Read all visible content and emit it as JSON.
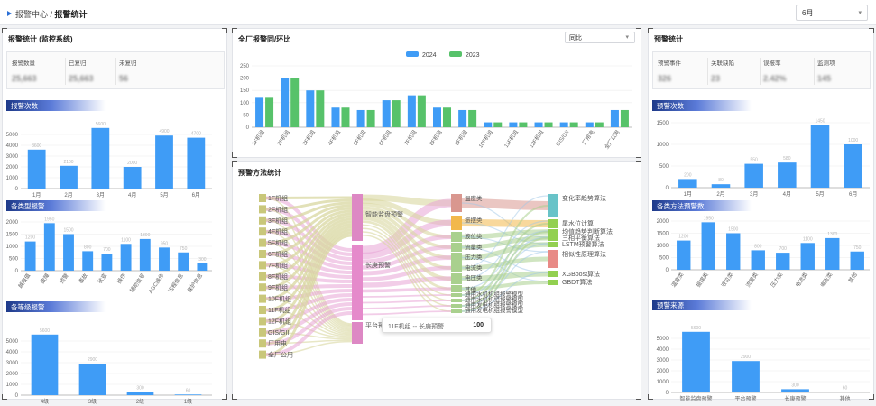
{
  "header": {
    "crumb_parent": "报警中心",
    "crumb_sep": " / ",
    "crumb_current": "报警统计",
    "month_value": "6月"
  },
  "left": {
    "title": "报警统计 (监控系统)",
    "stats": [
      {
        "label": "报警数量",
        "value": "25,663"
      },
      {
        "label": "已复归",
        "value": "25,663"
      },
      {
        "label": "未复归",
        "value": "56"
      }
    ],
    "count_section": "报警次数",
    "type_section": "各类型报警",
    "level_section": "各等级报警"
  },
  "middle": {
    "title": "全厂报警同/环比",
    "compare_value": "同比",
    "method_title": "预警方法统计",
    "tooltip": {
      "label": "11F机组 -- 长庚预警",
      "value": "100"
    }
  },
  "right": {
    "title": "预警统计",
    "stats": [
      {
        "label": "预警事件",
        "value": "326"
      },
      {
        "label": "关联缺陷",
        "value": "23"
      },
      {
        "label": "误报率",
        "value": "2.42%"
      },
      {
        "label": "监测项",
        "value": "145"
      }
    ],
    "count_section": "预警次数",
    "method_section": "各类方法预警数",
    "source_section": "预警来源"
  },
  "colors": {
    "bar": "#3f9cf6",
    "y2023": "#57c26a",
    "section": "#1e3a8a"
  },
  "chart_data": [
    {
      "id": "alarm-count",
      "type": "bar",
      "categories": [
        "1月",
        "2月",
        "3月",
        "4月",
        "5月",
        "6月"
      ],
      "values": [
        3600,
        2100,
        5600,
        2000,
        4900,
        4700
      ],
      "ylim": [
        0,
        6000
      ],
      "yticks": [
        0,
        1000,
        2000,
        3000,
        4000,
        5000
      ],
      "value_labels": [
        "3600",
        "2100",
        "5600",
        "2000",
        "4900",
        "4700"
      ]
    },
    {
      "id": "alarm-type",
      "type": "bar",
      "categories": [
        "越限值",
        "故障",
        "预警",
        "事故",
        "状变",
        "操作",
        "辅助信号",
        "AGC操作",
        "远程信息",
        "保护信息"
      ],
      "values": [
        1200,
        1950,
        1500,
        800,
        700,
        1100,
        1300,
        950,
        750,
        300
      ],
      "ylim": [
        0,
        2000
      ],
      "yticks": [
        0,
        500,
        1000,
        1500,
        2000
      ],
      "value_labels": [
        "1200",
        "1950",
        "1500",
        "800",
        "700",
        "1100",
        "1300",
        "950",
        "750",
        "300"
      ]
    },
    {
      "id": "alarm-level",
      "type": "bar",
      "categories": [
        "4级",
        "3级",
        "2级",
        "1级"
      ],
      "values": [
        5600,
        2900,
        300,
        60
      ],
      "ylim": [
        0,
        6000
      ],
      "yticks": [
        0,
        1000,
        2000,
        3000,
        4000,
        5000
      ],
      "value_labels": [
        "5600",
        "2900",
        "300",
        "60"
      ]
    },
    {
      "id": "yoy",
      "type": "bar",
      "categories": [
        "1F机组",
        "2F机组",
        "3F机组",
        "4F机组",
        "5F机组",
        "6F机组",
        "7F机组",
        "8F机组",
        "9F机组",
        "10F机组",
        "11F机组",
        "12F机组",
        "GIS/GII",
        "厂用电",
        "全厂公用"
      ],
      "series": [
        {
          "name": "2024",
          "values": [
            120,
            200,
            150,
            80,
            70,
            110,
            130,
            80,
            70,
            20,
            20,
            20,
            20,
            20,
            70
          ]
        },
        {
          "name": "2023",
          "values": [
            120,
            200,
            150,
            80,
            70,
            110,
            130,
            80,
            70,
            20,
            20,
            20,
            20,
            20,
            70
          ]
        }
      ],
      "ylim": [
        0,
        250
      ],
      "yticks": [
        0,
        50,
        100,
        150,
        200,
        250
      ]
    },
    {
      "id": "warn-count",
      "type": "bar",
      "categories": [
        "1月",
        "2月",
        "3月",
        "4月",
        "5月",
        "6月"
      ],
      "values": [
        200,
        80,
        550,
        580,
        1450,
        1000
      ],
      "ylim": [
        0,
        1500
      ],
      "yticks": [
        0,
        500,
        1000,
        1500
      ],
      "value_labels": [
        "200",
        "80",
        "550",
        "580",
        "1450",
        "1000"
      ]
    },
    {
      "id": "warn-method",
      "type": "bar",
      "categories": [
        "温度类",
        "振摆类",
        "液位类",
        "流量类",
        "压力类",
        "电流类",
        "电压类",
        "其他"
      ],
      "values": [
        1200,
        1950,
        1500,
        800,
        700,
        1100,
        1300,
        750
      ],
      "ylim": [
        0,
        2000
      ],
      "yticks": [
        0,
        500,
        1000,
        1500,
        2000
      ],
      "value_labels": [
        "1200",
        "1950",
        "1500",
        "800",
        "700",
        "1100",
        "1300",
        "750"
      ]
    },
    {
      "id": "warn-source",
      "type": "bar",
      "categories": [
        "智能监盘预警",
        "平台预警",
        "长庚预警",
        "其他"
      ],
      "values": [
        5600,
        2900,
        300,
        60
      ],
      "ylim": [
        0,
        6000
      ],
      "yticks": [
        0,
        1000,
        2000,
        3000,
        4000,
        5000
      ],
      "value_labels": [
        "5600",
        "2900",
        "300",
        "60"
      ]
    },
    {
      "id": "sankey",
      "type": "sankey",
      "left_nodes": [
        "1F机组",
        "2F机组",
        "3F机组",
        "4F机组",
        "5F机组",
        "6F机组",
        "7F机组",
        "8F机组",
        "9F机组",
        "10F机组",
        "11F机组",
        "12F机组",
        "GIS/GII",
        "厂用电",
        "全厂公用"
      ],
      "mid_nodes": [
        "智能监盘预警",
        "长庚预警",
        "平台预警"
      ],
      "cat_nodes": [
        "温度类",
        "振摆类",
        "液位类",
        "流量类",
        "压力类",
        "电流类",
        "电压类",
        "其他",
        "通用水机机组报警模型",
        "通用水机机组报警模型",
        "通用发电机组报警模型",
        "通用发电机组报警模型"
      ],
      "algo_nodes": [
        "变化率趋势算法",
        "尾水位计算",
        "均值趋势判断算法",
        "三相平衡算法",
        "LSTM预警算法",
        "相似性原理算法",
        "XGBoost算法",
        "GBDT算法"
      ]
    }
  ]
}
